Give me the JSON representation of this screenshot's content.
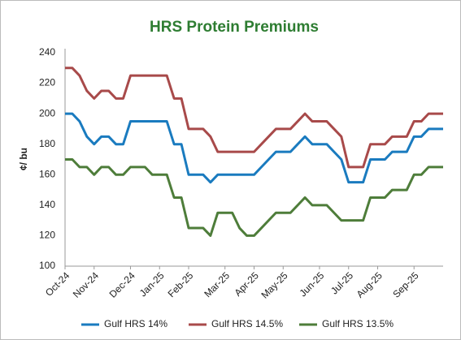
{
  "chart_data": {
    "type": "line",
    "title": "HRS Protein Premiums",
    "y_label": "¢/ bu",
    "categories": [
      "Oct-24",
      null,
      null,
      null,
      "Nov-24",
      null,
      null,
      null,
      null,
      "Dec-24",
      null,
      null,
      null,
      "Jan-25",
      null,
      null,
      null,
      "Feb-25",
      null,
      null,
      null,
      null,
      "Mar-25",
      null,
      null,
      null,
      "Apr-25",
      null,
      null,
      null,
      "May-25",
      null,
      null,
      null,
      null,
      "Jun-25",
      null,
      null,
      null,
      "Jul-25",
      null,
      null,
      null,
      "Aug-25",
      null,
      null,
      null,
      null,
      "Sep-25",
      null,
      null,
      null,
      null
    ],
    "series": [
      {
        "name": "Gulf HRS 14%",
        "color": "#1a7bbf",
        "values": [
          200,
          200,
          195,
          185,
          180,
          185,
          185,
          180,
          180,
          195,
          195,
          195,
          195,
          195,
          195,
          180,
          180,
          160,
          160,
          160,
          155,
          160,
          160,
          160,
          160,
          160,
          160,
          165,
          170,
          175,
          175,
          175,
          180,
          185,
          180,
          180,
          180,
          175,
          170,
          155,
          155,
          155,
          170,
          170,
          170,
          175,
          175,
          175,
          185,
          185,
          190,
          190,
          190
        ]
      },
      {
        "name": "Gulf HRS 14.5%",
        "color": "#a84a4a",
        "values": [
          230,
          230,
          225,
          215,
          210,
          215,
          215,
          210,
          210,
          225,
          225,
          225,
          225,
          225,
          225,
          210,
          210,
          190,
          190,
          190,
          185,
          175,
          175,
          175,
          175,
          175,
          175,
          180,
          185,
          190,
          190,
          190,
          195,
          200,
          195,
          195,
          195,
          190,
          185,
          165,
          165,
          165,
          180,
          180,
          180,
          185,
          185,
          185,
          195,
          195,
          200,
          200,
          200
        ]
      },
      {
        "name": "Gulf HRS 13.5%",
        "color": "#4e7d3a",
        "values": [
          170,
          170,
          165,
          165,
          160,
          165,
          165,
          160,
          160,
          165,
          165,
          165,
          160,
          160,
          160,
          145,
          145,
          125,
          125,
          125,
          120,
          135,
          135,
          135,
          125,
          120,
          120,
          125,
          130,
          135,
          135,
          135,
          140,
          145,
          140,
          140,
          140,
          135,
          130,
          130,
          130,
          130,
          145,
          145,
          145,
          150,
          150,
          150,
          160,
          160,
          165,
          165,
          165
        ]
      }
    ],
    "ylim": [
      100,
      240
    ],
    "yticks": [
      100,
      120,
      140,
      160,
      180,
      200,
      220,
      240
    ],
    "grid": false,
    "legend": "bottom"
  }
}
